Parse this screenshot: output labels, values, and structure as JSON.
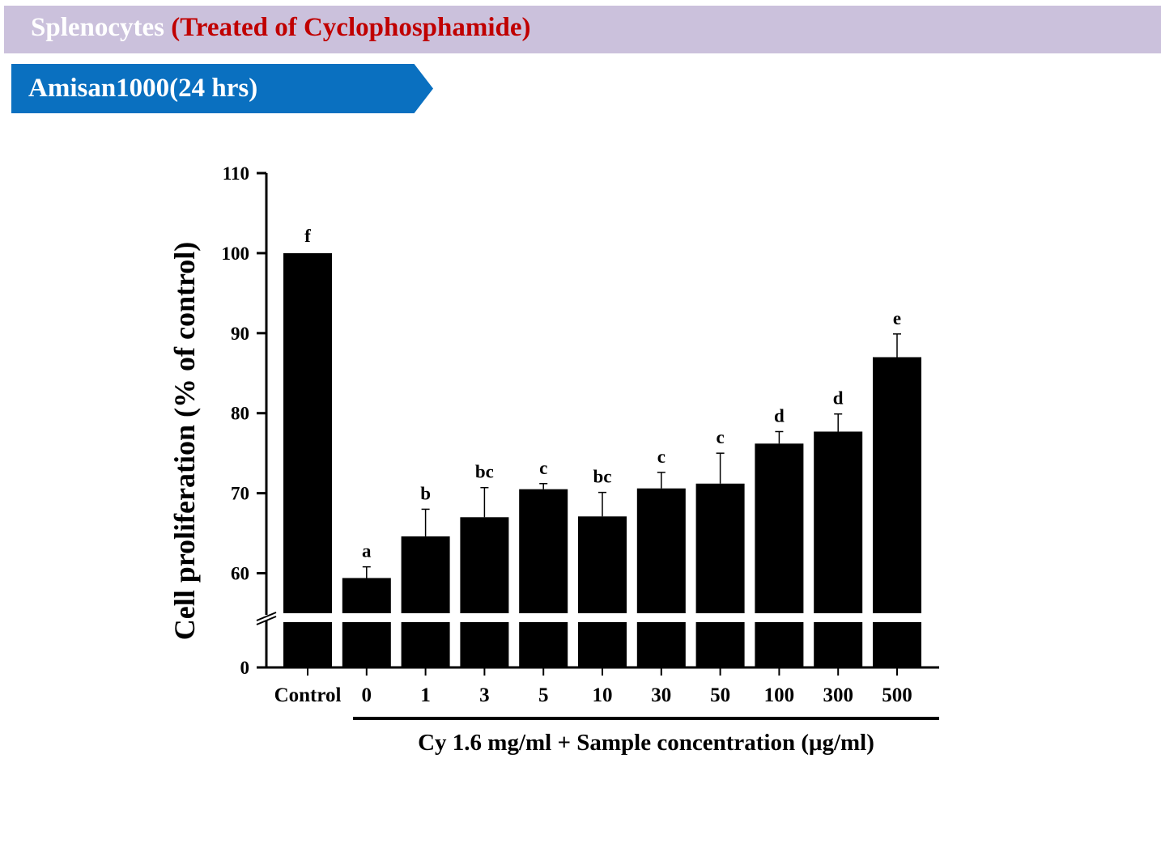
{
  "header": {
    "title_main": "Splenocytes",
    "title_sub": "(Treated of Cyclophosphamide)",
    "banner": "Amisan1000(24 hrs)"
  },
  "colors": {
    "header_bg": "#cbc1dc",
    "banner_bg": "#0a70c0",
    "subtitle_red": "#c00000",
    "bars": "#000000"
  },
  "chart_data": {
    "type": "bar",
    "ylabel": "Cell proliferation (% of control)",
    "xlabel": "Cy 1.6 mg/ml + Sample concentration (μg/ml)",
    "categories": [
      "Control",
      "0",
      "1",
      "3",
      "5",
      "10",
      "30",
      "50",
      "100",
      "300",
      "500"
    ],
    "values": [
      100,
      59.4,
      64.6,
      67.0,
      70.5,
      67.1,
      70.6,
      71.2,
      76.2,
      77.7,
      87.0
    ],
    "errors": [
      0,
      1.4,
      3.4,
      3.7,
      0.7,
      3.0,
      2.0,
      3.8,
      1.5,
      2.2,
      2.9
    ],
    "significance": [
      "f",
      "a",
      "b",
      "bc",
      "c",
      "bc",
      "c",
      "c",
      "d",
      "d",
      "e"
    ],
    "y_ticks": [
      0,
      60,
      70,
      80,
      90,
      100,
      110
    ],
    "ylim": [
      0,
      110
    ],
    "y_axis_break": [
      0,
      55
    ],
    "grid": false,
    "legend": "none"
  }
}
